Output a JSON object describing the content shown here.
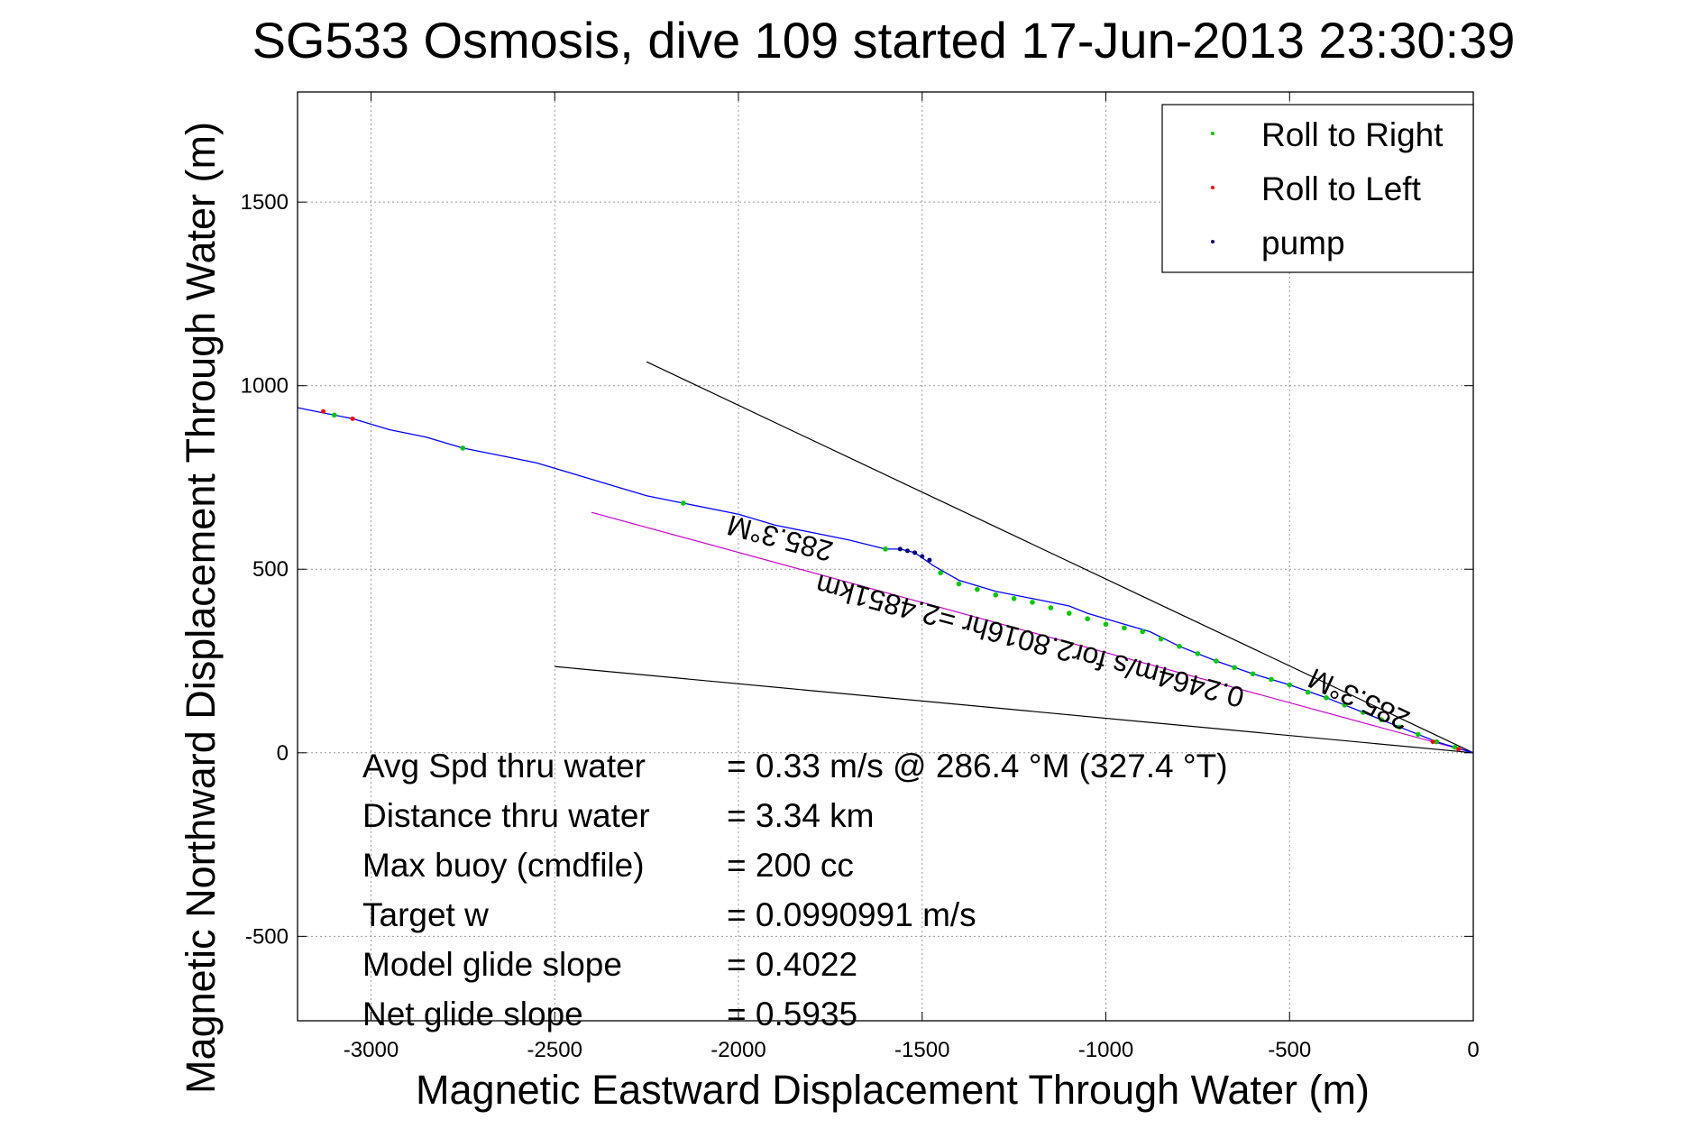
{
  "chart_data": {
    "type": "scatter",
    "title": "SG533 Osmosis, dive 109 started 17-Jun-2013 23:30:39",
    "xlabel": "Magnetic Eastward Displacement Through Water (m)",
    "ylabel": "Magnetic Northward Displacement Through Water (m)",
    "xlim": [
      -3200,
      0
    ],
    "ylim": [
      -730,
      1800
    ],
    "xticks": [
      -3000,
      -2500,
      -2000,
      -1500,
      -1000,
      -500,
      0
    ],
    "yticks": [
      -500,
      0,
      500,
      1000,
      1500
    ],
    "grid": true,
    "legend_position": "top-right",
    "colors": {
      "track": "#0000ff",
      "roll_right": "#00cc00",
      "roll_left": "#ff0000",
      "pump": "#000080",
      "avg_line": "#cc00cc",
      "wedge": "#000000"
    },
    "track": {
      "x": [
        0,
        -100,
        -200,
        -300,
        -400,
        -500,
        -600,
        -700,
        -800,
        -880,
        -950,
        -1050,
        -1100,
        -1200,
        -1300,
        -1400,
        -1470,
        -1520,
        -1560,
        -1600,
        -1700,
        -1800,
        -1900,
        -2000,
        -2150,
        -2250,
        -2350,
        -2450,
        -2550,
        -2650,
        -2750,
        -2850,
        -2950,
        -3050,
        -3150,
        -3200
      ],
      "y": [
        0,
        30,
        70,
        110,
        150,
        185,
        215,
        250,
        290,
        330,
        350,
        380,
        400,
        420,
        440,
        470,
        510,
        545,
        555,
        555,
        580,
        600,
        620,
        650,
        680,
        700,
        730,
        760,
        790,
        810,
        830,
        860,
        880,
        910,
        930,
        940
      ]
    },
    "series": [
      {
        "name": "Roll to Right",
        "x": [
          -50,
          -100,
          -150,
          -200,
          -250,
          -300,
          -350,
          -400,
          -450,
          -500,
          -550,
          -600,
          -650,
          -700,
          -750,
          -800,
          -850,
          -900,
          -950,
          -1000,
          -1050,
          -1100,
          -1150,
          -1200,
          -1250,
          -1300,
          -1350,
          -1400,
          -1450,
          -1600,
          -2150,
          -2750,
          -3100
        ],
        "y": [
          15,
          30,
          50,
          70,
          90,
          110,
          130,
          150,
          165,
          185,
          200,
          215,
          232,
          250,
          270,
          290,
          310,
          330,
          340,
          350,
          365,
          380,
          395,
          410,
          420,
          430,
          445,
          460,
          490,
          555,
          680,
          830,
          920
        ]
      },
      {
        "name": "Roll to Left",
        "x": [
          -40,
          -110,
          -3050,
          -3130
        ],
        "y": [
          10,
          30,
          910,
          930
        ]
      },
      {
        "name": "pump",
        "x": [
          -1480,
          -1500,
          -1520,
          -1540,
          -1560
        ],
        "y": [
          525,
          535,
          545,
          550,
          555
        ]
      }
    ],
    "reference_lines": [
      {
        "kind": "avg",
        "x": [
          0,
          -2400
        ],
        "y": [
          0,
          655
        ]
      },
      {
        "kind": "wedge",
        "x": [
          0,
          -2250
        ],
        "y": [
          0,
          1065
        ]
      },
      {
        "kind": "wedge",
        "x": [
          0,
          -2500
        ],
        "y": [
          0,
          235
        ]
      }
    ],
    "annotations": [
      {
        "text": "285.3°M",
        "x": -1880,
        "y": 610,
        "rotation": 195
      },
      {
        "text": "0.2464m/s for2.8016hr =2.4851km",
        "x": -1200,
        "y": 330,
        "rotation": 195
      },
      {
        "text": "285.3°M",
        "x": -300,
        "y": 170,
        "rotation": 205
      }
    ],
    "stats": [
      {
        "label": "Avg Spd thru water",
        "value": "=  0.33 m/s @ 286.4 °M (327.4 °T)"
      },
      {
        "label": "Distance thru water",
        "value": "=  3.34 km"
      },
      {
        "label": "Max buoy (cmdfile)",
        "value": "= 200 cc"
      },
      {
        "label": "Target w",
        "value": "= 0.0990991 m/s"
      },
      {
        "label": "Model glide slope",
        "value": "= 0.4022"
      },
      {
        "label": "Net glide slope",
        "value": "= 0.5935"
      }
    ]
  }
}
